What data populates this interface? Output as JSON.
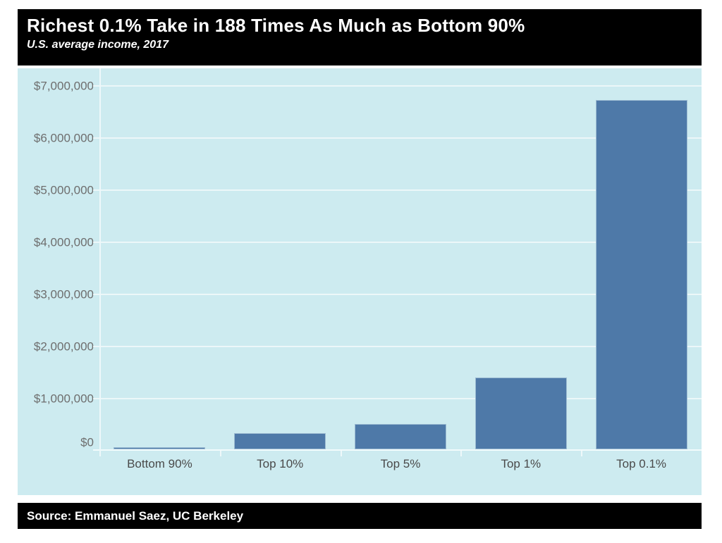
{
  "header": {
    "title": "Richest 0.1% Take in 188 Times As Much as Bottom 90%",
    "subtitle": "U.S. average income, 2017"
  },
  "footer": {
    "source": "Source: Emmanuel Saez, UC Berkeley"
  },
  "chart_data": {
    "type": "bar",
    "title": "Richest 0.1% Take in 188 Times As Much as Bottom 90%",
    "subtitle": "U.S. average income, 2017",
    "source": "Source: Emmanuel Saez, UC Berkeley",
    "categories": [
      "Bottom 90%",
      "Top 10%",
      "Top 5%",
      "Top 1%",
      "Top 0.1%"
    ],
    "values": [
      36000,
      310000,
      480000,
      1380000,
      6700000
    ],
    "xlabel": "",
    "ylabel": "",
    "ylim": [
      0,
      7000000
    ],
    "ytick_interval": 1000000,
    "yticks": [
      {
        "value": 0,
        "label": "$0"
      },
      {
        "value": 1000000,
        "label": "$1,000,000"
      },
      {
        "value": 2000000,
        "label": "$2,000,000"
      },
      {
        "value": 3000000,
        "label": "$3,000,000"
      },
      {
        "value": 4000000,
        "label": "$4,000,000"
      },
      {
        "value": 5000000,
        "label": "$5,000,000"
      },
      {
        "value": 6000000,
        "label": "$6,000,000"
      },
      {
        "value": 7000000,
        "label": "$7,000,000"
      }
    ],
    "grid": true,
    "legend": false,
    "colors": {
      "bar_fill": "#4e79a8",
      "bar_border": "#9dbcd2",
      "plot_background": "#cdebf0",
      "gridline": "#ecf7f9",
      "banner_background": "#000000",
      "banner_text": "#ffffff",
      "y_label_text": "#6e6e6e",
      "x_label_text": "#4a4a4a"
    }
  }
}
